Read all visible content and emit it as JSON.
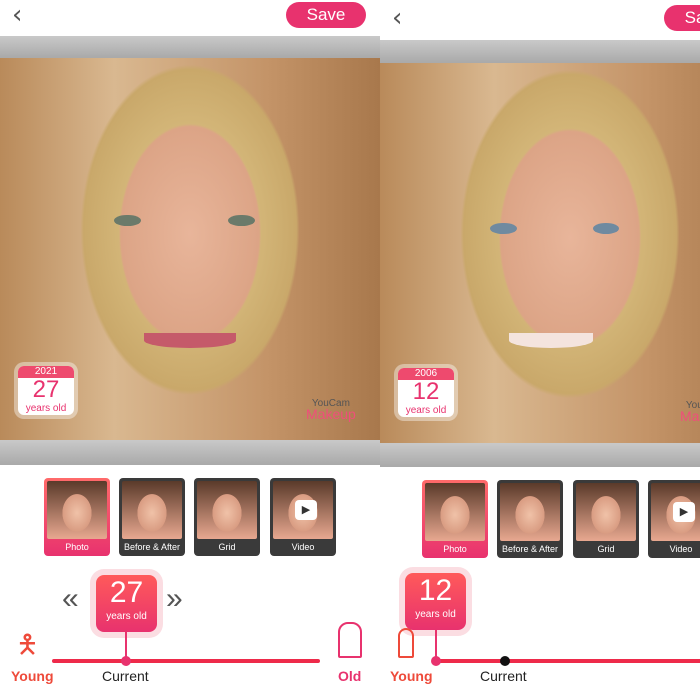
{
  "panels": [
    {
      "save_label": "Save",
      "calendar": {
        "year": "2021",
        "age": "27",
        "unit": "years old"
      },
      "watermark": {
        "line1": "YouCam",
        "line2": "Makeup"
      },
      "age_bubble": {
        "age": "27",
        "unit": "years old"
      },
      "slider": {
        "young": "Young",
        "current": "Current",
        "old": "Old"
      }
    },
    {
      "save_label": "Save",
      "calendar": {
        "year": "2006",
        "age": "12",
        "unit": "years old"
      },
      "watermark": {
        "line1": "YouCam",
        "line2": "Makeup"
      },
      "age_bubble": {
        "age": "12",
        "unit": "years old"
      },
      "slider": {
        "young": "Young",
        "current": "Current"
      }
    }
  ],
  "modes": [
    "Photo",
    "Before & After",
    "Grid",
    "Video"
  ],
  "selected_mode": "Photo",
  "icons": {
    "back": "chevron-left-icon",
    "prev": "double-chevron-left-icon",
    "next": "double-chevron-right-icon"
  },
  "colors": {
    "accent": "#e8326e"
  }
}
